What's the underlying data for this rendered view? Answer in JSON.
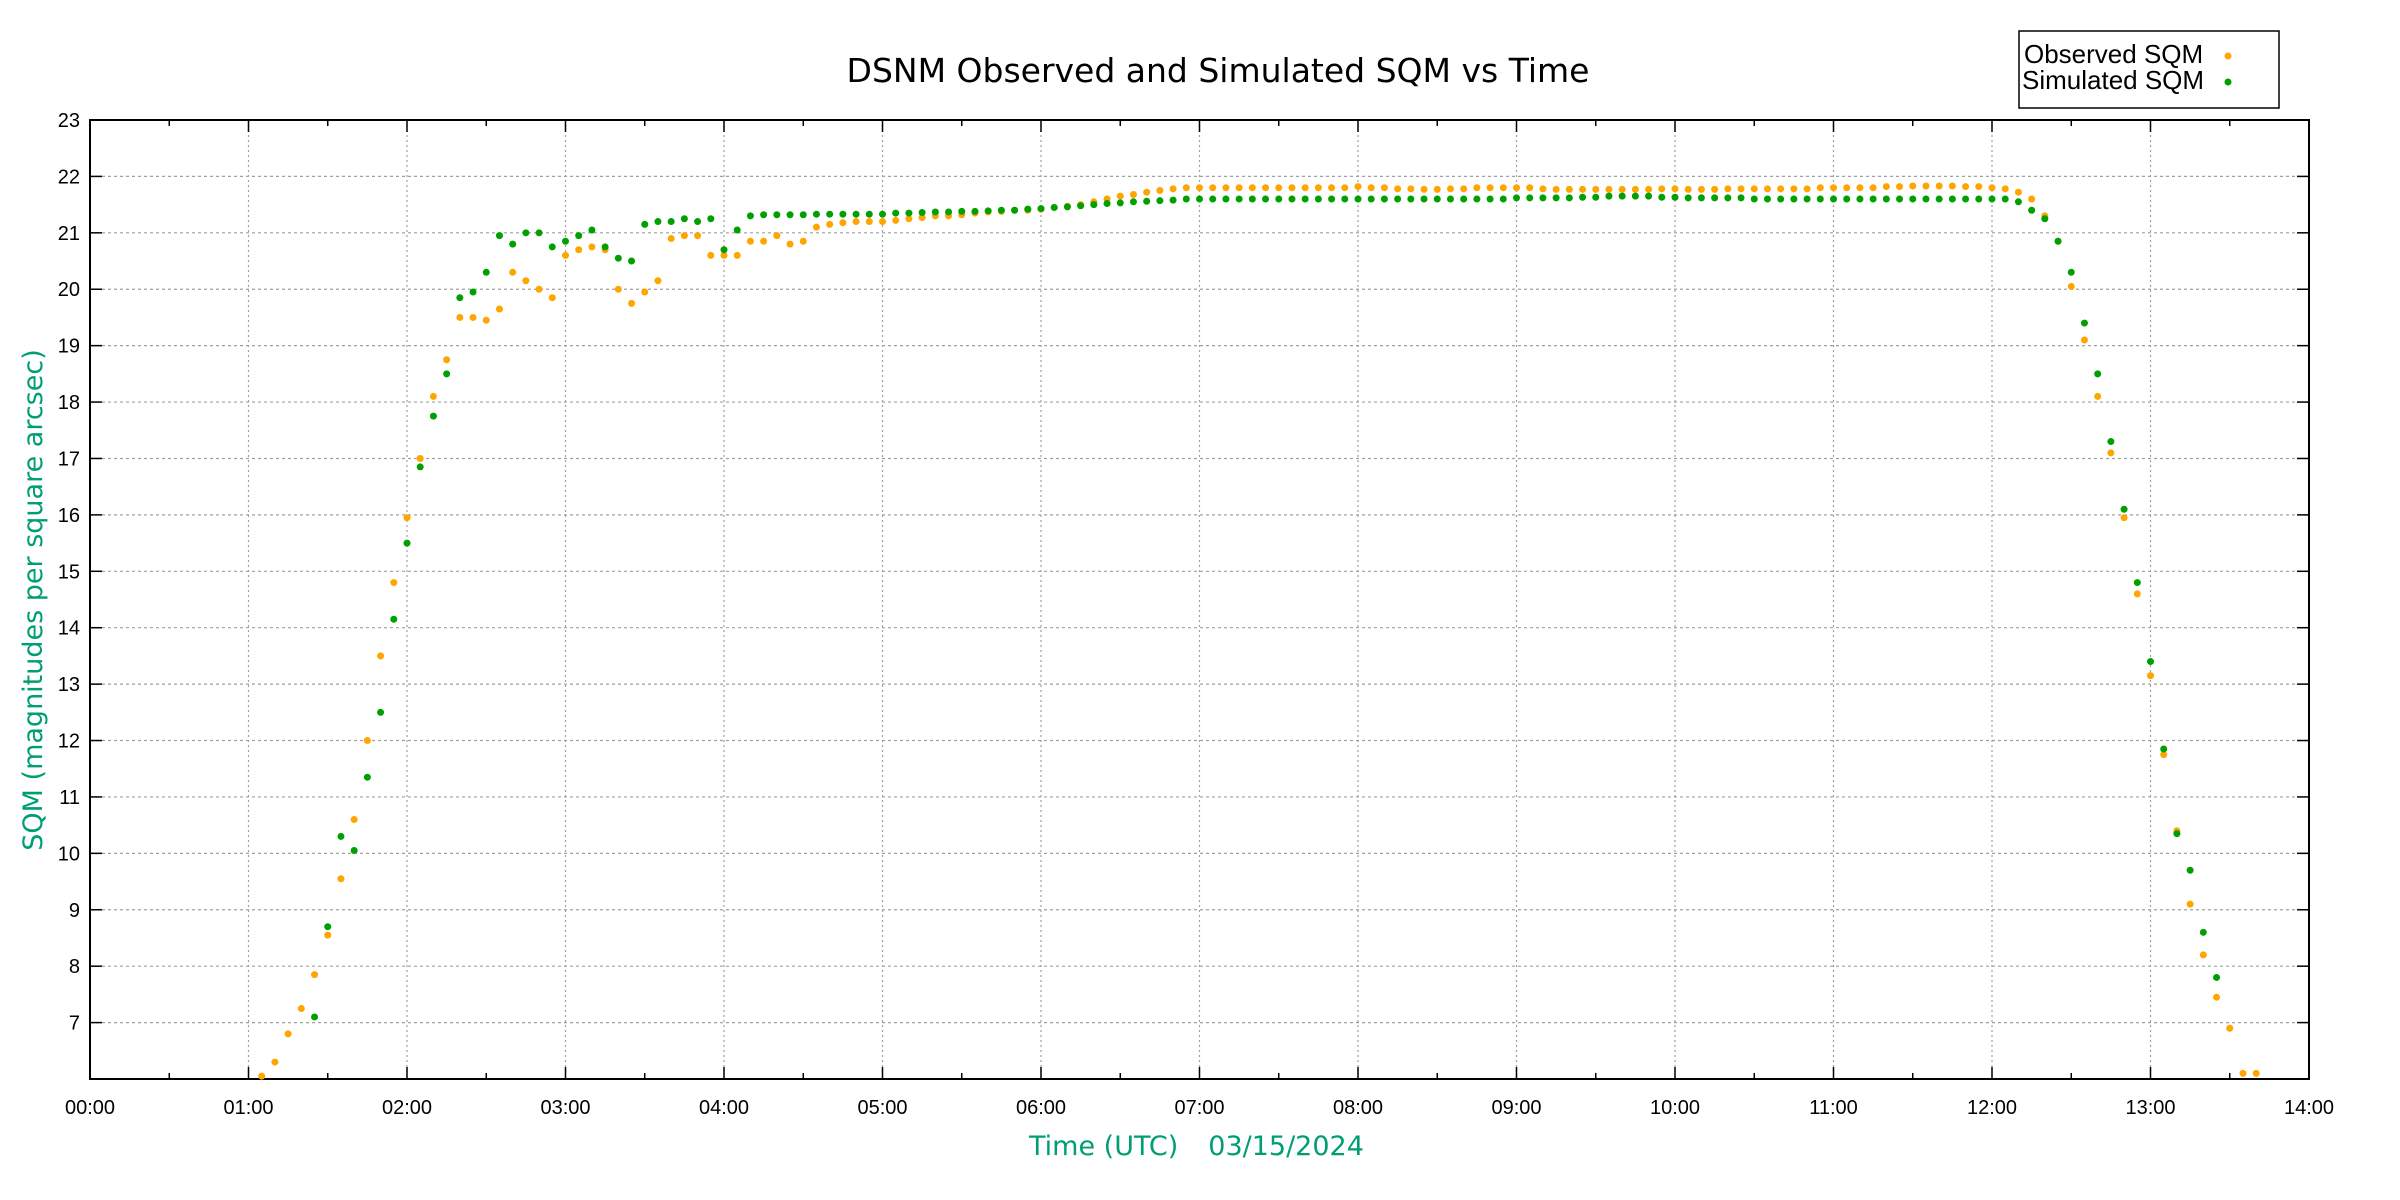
{
  "chart_data": {
    "type": "scatter",
    "title": "DSNM Observed and Simulated SQM vs Time",
    "xlabel": "Time (UTC)",
    "xlabel_date": "03/15/2024",
    "ylabel": "SQM (magnitudes per square arcsec)",
    "xlim": [
      "00:00",
      "14:00"
    ],
    "ylim": [
      6,
      23
    ],
    "grid": true,
    "legend_position": "top-right",
    "xticks": [
      "00:00",
      "01:00",
      "02:00",
      "03:00",
      "04:00",
      "05:00",
      "06:00",
      "07:00",
      "08:00",
      "09:00",
      "10:00",
      "11:00",
      "12:00",
      "13:00",
      "14:00"
    ],
    "yticks": [
      "7",
      "8",
      "9",
      "10",
      "11",
      "12",
      "13",
      "14",
      "15",
      "16",
      "17",
      "18",
      "19",
      "20",
      "21",
      "22",
      "23"
    ],
    "series": [
      {
        "name": "Observed SQM",
        "color": "#ffa500",
        "x": [
          "01:05",
          "01:10",
          "01:15",
          "01:20",
          "01:25",
          "01:30",
          "01:35",
          "01:40",
          "01:45",
          "01:50",
          "01:55",
          "02:00",
          "02:05",
          "02:10",
          "02:15",
          "02:20",
          "02:25",
          "02:30",
          "02:35",
          "02:40",
          "02:45",
          "02:50",
          "02:55",
          "03:00",
          "03:05",
          "03:10",
          "03:15",
          "03:20",
          "03:25",
          "03:30",
          "03:35",
          "03:40",
          "03:45",
          "03:50",
          "03:55",
          "04:00",
          "04:05",
          "04:10",
          "04:15",
          "04:20",
          "04:25",
          "04:30",
          "04:35",
          "04:40",
          "04:45",
          "04:50",
          "04:55",
          "05:00",
          "05:05",
          "05:10",
          "05:15",
          "05:20",
          "05:25",
          "05:30",
          "05:35",
          "05:40",
          "05:45",
          "05:50",
          "05:55",
          "06:00",
          "06:05",
          "06:10",
          "06:15",
          "06:20",
          "06:25",
          "06:30",
          "06:35",
          "06:40",
          "06:45",
          "06:50",
          "06:55",
          "07:00",
          "07:05",
          "07:10",
          "07:15",
          "07:20",
          "07:25",
          "07:30",
          "07:35",
          "07:40",
          "07:45",
          "07:50",
          "07:55",
          "08:00",
          "08:05",
          "08:10",
          "08:15",
          "08:20",
          "08:25",
          "08:30",
          "08:35",
          "08:40",
          "08:45",
          "08:50",
          "08:55",
          "09:00",
          "09:05",
          "09:10",
          "09:15",
          "09:20",
          "09:25",
          "09:30",
          "09:35",
          "09:40",
          "09:45",
          "09:50",
          "09:55",
          "10:00",
          "10:05",
          "10:10",
          "10:15",
          "10:20",
          "10:25",
          "10:30",
          "10:35",
          "10:40",
          "10:45",
          "10:50",
          "10:55",
          "11:00",
          "11:05",
          "11:10",
          "11:15",
          "11:20",
          "11:25",
          "11:30",
          "11:35",
          "11:40",
          "11:45",
          "11:50",
          "11:55",
          "12:00",
          "12:05",
          "12:10",
          "12:15",
          "12:20",
          "12:25",
          "12:30",
          "12:35",
          "12:40",
          "12:45",
          "12:50",
          "12:55",
          "13:00",
          "13:05",
          "13:10",
          "13:15",
          "13:20",
          "13:25",
          "13:30",
          "13:35",
          "13:40"
        ],
        "y": [
          6.05,
          6.3,
          6.8,
          7.25,
          7.85,
          8.55,
          9.55,
          10.6,
          12.0,
          13.5,
          14.8,
          15.95,
          17.0,
          18.1,
          18.75,
          19.5,
          19.5,
          19.45,
          19.65,
          20.3,
          20.15,
          20.0,
          19.85,
          20.6,
          20.7,
          20.75,
          20.7,
          20.0,
          19.75,
          19.95,
          20.15,
          20.9,
          20.95,
          20.95,
          20.6,
          20.6,
          20.6,
          20.85,
          20.85,
          20.95,
          20.8,
          20.85,
          21.1,
          21.15,
          21.18,
          21.2,
          21.2,
          21.2,
          21.22,
          21.25,
          21.27,
          21.3,
          21.3,
          21.32,
          21.35,
          21.37,
          21.38,
          21.4,
          21.4,
          21.42,
          21.45,
          21.47,
          21.5,
          21.55,
          21.6,
          21.65,
          21.68,
          21.72,
          21.75,
          21.78,
          21.8,
          21.8,
          21.8,
          21.8,
          21.8,
          21.8,
          21.8,
          21.8,
          21.8,
          21.8,
          21.8,
          21.8,
          21.8,
          21.82,
          21.8,
          21.8,
          21.78,
          21.78,
          21.77,
          21.77,
          21.78,
          21.78,
          21.8,
          21.8,
          21.8,
          21.8,
          21.8,
          21.78,
          21.77,
          21.77,
          21.77,
          21.77,
          21.77,
          21.77,
          21.77,
          21.77,
          21.78,
          21.78,
          21.77,
          21.77,
          21.77,
          21.78,
          21.78,
          21.78,
          21.78,
          21.78,
          21.78,
          21.78,
          21.8,
          21.8,
          21.8,
          21.8,
          21.8,
          21.82,
          21.82,
          21.83,
          21.83,
          21.83,
          21.83,
          21.82,
          21.82,
          21.8,
          21.78,
          21.72,
          21.6,
          21.3,
          20.85,
          20.05,
          19.1,
          18.1,
          17.1,
          15.95,
          14.6,
          13.15,
          11.75,
          10.4,
          9.1,
          8.2,
          7.45,
          6.9,
          6.1,
          6.1
        ]
      },
      {
        "name": "Simulated SQM",
        "color": "#00a000",
        "x": [
          "01:25",
          "01:30",
          "01:35",
          "01:40",
          "01:45",
          "01:50",
          "01:55",
          "02:00",
          "02:05",
          "02:10",
          "02:15",
          "02:20",
          "02:25",
          "02:30",
          "02:35",
          "02:40",
          "02:45",
          "02:50",
          "02:55",
          "03:00",
          "03:05",
          "03:10",
          "03:15",
          "03:20",
          "03:25",
          "03:30",
          "03:35",
          "03:40",
          "03:45",
          "03:50",
          "03:55",
          "04:00",
          "04:05",
          "04:10",
          "04:15",
          "04:20",
          "04:25",
          "04:30",
          "04:35",
          "04:40",
          "04:45",
          "04:50",
          "04:55",
          "05:00",
          "05:05",
          "05:10",
          "05:15",
          "05:20",
          "05:25",
          "05:30",
          "05:35",
          "05:40",
          "05:45",
          "05:50",
          "05:55",
          "06:00",
          "06:05",
          "06:10",
          "06:15",
          "06:20",
          "06:25",
          "06:30",
          "06:35",
          "06:40",
          "06:45",
          "06:50",
          "06:55",
          "07:00",
          "07:05",
          "07:10",
          "07:15",
          "07:20",
          "07:25",
          "07:30",
          "07:35",
          "07:40",
          "07:45",
          "07:50",
          "07:55",
          "08:00",
          "08:05",
          "08:10",
          "08:15",
          "08:20",
          "08:25",
          "08:30",
          "08:35",
          "08:40",
          "08:45",
          "08:50",
          "08:55",
          "09:00",
          "09:05",
          "09:10",
          "09:15",
          "09:20",
          "09:25",
          "09:30",
          "09:35",
          "09:40",
          "09:45",
          "09:50",
          "09:55",
          "10:00",
          "10:05",
          "10:10",
          "10:15",
          "10:20",
          "10:25",
          "10:30",
          "10:35",
          "10:40",
          "10:45",
          "10:50",
          "10:55",
          "11:00",
          "11:05",
          "11:10",
          "11:15",
          "11:20",
          "11:25",
          "11:30",
          "11:35",
          "11:40",
          "11:45",
          "11:50",
          "11:55",
          "12:00",
          "12:05",
          "12:10",
          "12:15",
          "12:20",
          "12:25",
          "12:30",
          "12:35",
          "12:40",
          "12:45",
          "12:50",
          "12:55",
          "13:00",
          "13:05",
          "13:10",
          "13:15",
          "13:20",
          "13:25"
        ],
        "y": [
          7.1,
          8.7,
          10.3,
          10.05,
          11.35,
          12.5,
          14.15,
          15.5,
          16.85,
          17.75,
          18.5,
          19.85,
          19.95,
          20.3,
          20.95,
          20.8,
          21.0,
          21.0,
          20.75,
          20.85,
          20.95,
          21.05,
          20.75,
          20.55,
          20.5,
          21.15,
          21.2,
          21.2,
          21.25,
          21.2,
          21.25,
          20.7,
          21.05,
          21.3,
          21.32,
          21.32,
          21.32,
          21.32,
          21.33,
          21.33,
          21.33,
          21.33,
          21.33,
          21.33,
          21.35,
          21.35,
          21.36,
          21.37,
          21.37,
          21.38,
          21.38,
          21.39,
          21.4,
          21.4,
          21.42,
          21.43,
          21.45,
          21.46,
          21.48,
          21.5,
          21.52,
          21.53,
          21.55,
          21.56,
          21.57,
          21.58,
          21.6,
          21.6,
          21.6,
          21.6,
          21.6,
          21.6,
          21.6,
          21.6,
          21.6,
          21.6,
          21.6,
          21.6,
          21.6,
          21.6,
          21.6,
          21.6,
          21.6,
          21.6,
          21.6,
          21.6,
          21.6,
          21.6,
          21.6,
          21.6,
          21.6,
          21.62,
          21.62,
          21.62,
          21.62,
          21.62,
          21.63,
          21.63,
          21.65,
          21.65,
          21.65,
          21.65,
          21.63,
          21.63,
          21.62,
          21.62,
          21.62,
          21.62,
          21.62,
          21.6,
          21.6,
          21.6,
          21.6,
          21.6,
          21.6,
          21.6,
          21.6,
          21.6,
          21.6,
          21.6,
          21.6,
          21.6,
          21.6,
          21.6,
          21.6,
          21.6,
          21.6,
          21.6,
          21.6,
          21.55,
          21.4,
          21.25,
          20.85,
          20.3,
          19.4,
          18.5,
          17.3,
          16.1,
          14.8,
          13.4,
          11.85,
          10.35,
          9.7,
          8.6,
          7.8
        ]
      }
    ]
  }
}
